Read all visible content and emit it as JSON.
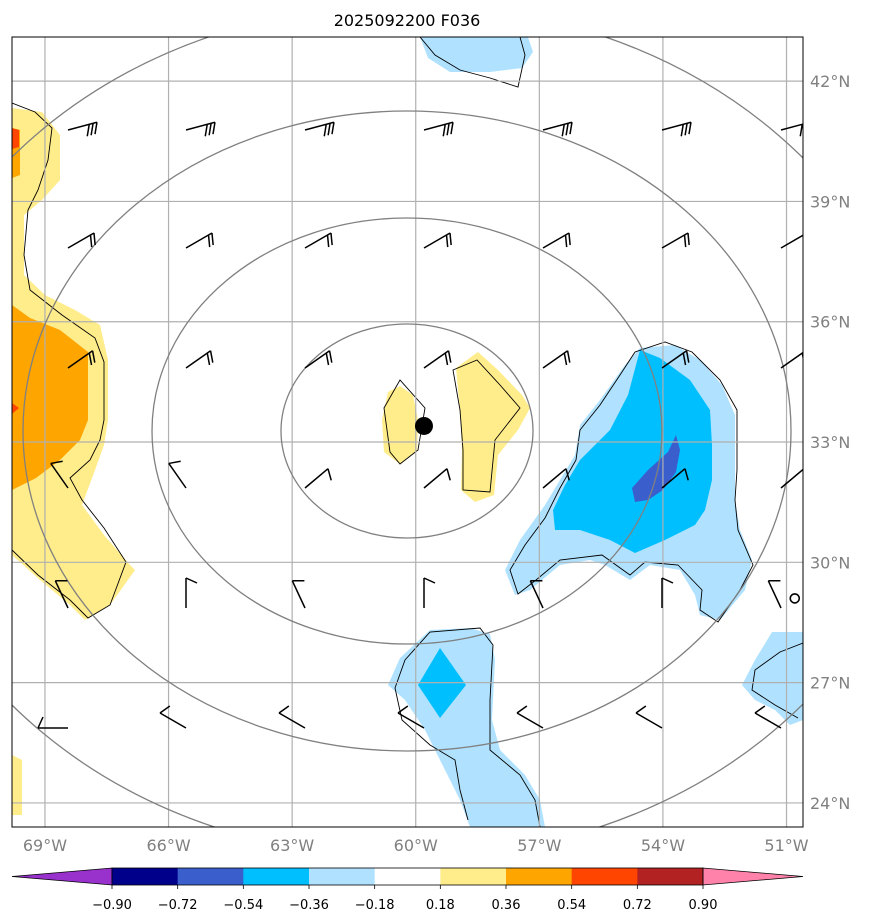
{
  "title": "2025092200 F036",
  "map": {
    "lon_range": [
      -69.8,
      -50.6
    ],
    "lat_range": [
      23.4,
      43.1
    ],
    "center_marker": {
      "lon": -59.8,
      "lat": 33.4,
      "color": "#000000"
    },
    "small_circle_marker": {
      "lon": -50.8,
      "lat": 29.1
    },
    "lat_ticks": [
      {
        "value": 42,
        "label": "42°N"
      },
      {
        "value": 39,
        "label": "39°N"
      },
      {
        "value": 36,
        "label": "36°N"
      },
      {
        "value": 33,
        "label": "33°N"
      },
      {
        "value": 30,
        "label": "30°N"
      },
      {
        "value": 27,
        "label": "27°N"
      },
      {
        "value": 24,
        "label": "24°N"
      }
    ],
    "lon_ticks": [
      {
        "value": -69,
        "label": "69°W"
      },
      {
        "value": -66,
        "label": "66°W"
      },
      {
        "value": -63,
        "label": "63°W"
      },
      {
        "value": -60,
        "label": "60°W"
      },
      {
        "value": -57,
        "label": "57°W"
      },
      {
        "value": -54,
        "label": "54°W"
      },
      {
        "value": -51,
        "label": "51°W"
      }
    ],
    "grid_color": "#b0b0b0",
    "range_ring_color": "#808080"
  },
  "colorbar": {
    "colors": [
      "#9932cc",
      "#00008b",
      "#3a5fcd",
      "#00bfff",
      "#b0e2ff",
      "#ffffff",
      "#ffec8b",
      "#ffa500",
      "#ff4500",
      "#b22222",
      "#ff82ab"
    ],
    "labels": [
      "−0.90",
      "−0.72",
      "−0.54",
      "−0.36",
      "−0.18",
      "0.18",
      "0.36",
      "0.54",
      "0.72",
      "0.90"
    ]
  }
}
